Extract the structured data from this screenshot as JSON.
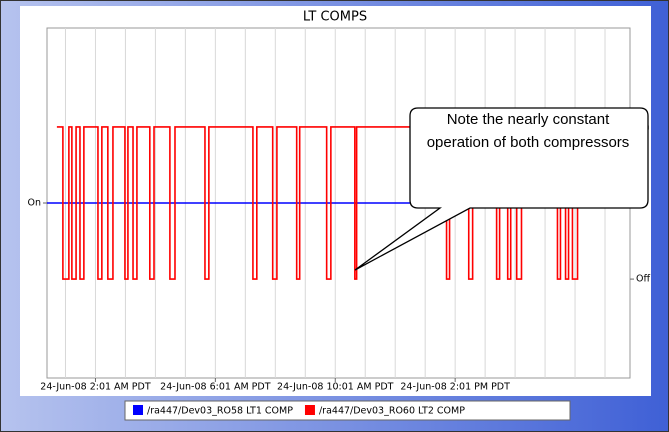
{
  "chart_data": {
    "type": "line",
    "step": "post",
    "title": "LT COMPS",
    "annotation": "Note the nearly constant operation of both compressors",
    "xlim": [
      0.4,
      19.85
    ],
    "xticks": [
      {
        "value": 2.0167,
        "label": "24-Jun-08 2:01 AM PDT"
      },
      {
        "value": 6.0167,
        "label": "24-Jun-08 6:01 AM PDT"
      },
      {
        "value": 10.0167,
        "label": "24-Jun-08 10:01 AM PDT"
      },
      {
        "value": 14.0167,
        "label": "24-Jun-08 2:01 PM PDT"
      }
    ],
    "xminorticks": [
      1.0167,
      2.0167,
      3.0167,
      4.0167,
      5.0167,
      6.0167,
      7.0167,
      8.0167,
      9.0167,
      10.0167,
      11.0167,
      12.0167,
      13.0167,
      14.0167,
      15.0167,
      16.0167,
      17.0167,
      18.0167,
      19.0167
    ],
    "ylim": [
      0,
      2
    ],
    "yticks": [
      {
        "value": 1,
        "label": "On"
      }
    ],
    "y2lim": [
      -0.65,
      1.65
    ],
    "y2ticks": [
      {
        "value": 1,
        "label": "On"
      },
      {
        "value": 0,
        "label": "Off"
      }
    ],
    "grid": true,
    "legend": "bottom",
    "series": [
      {
        "name": "/ra447/Dev03_RO58 LT1 COMP",
        "color": "#0000ff",
        "axis": "y",
        "x": [
          0.4,
          19.83
        ],
        "values": [
          1,
          1
        ]
      },
      {
        "name": "/ra447/Dev03_RO60 LT2 COMP",
        "color": "#ff0000",
        "axis": "y2",
        "x": [
          0.73,
          0.93,
          1.13,
          1.23,
          1.37,
          1.5,
          1.63,
          2.1,
          2.23,
          2.43,
          2.6,
          3.0,
          3.1,
          3.27,
          3.4,
          3.83,
          3.97,
          4.5,
          4.67,
          5.67,
          5.8,
          7.27,
          7.4,
          7.93,
          8.07,
          8.73,
          8.83,
          9.73,
          9.87,
          10.67,
          10.73,
          13.73,
          13.83,
          14.47,
          14.6,
          15.4,
          15.5,
          15.77,
          15.87,
          16.07,
          16.23,
          17.43,
          17.53,
          17.7,
          17.8,
          17.93,
          18.1,
          19.83
        ],
        "values": [
          1,
          0,
          1,
          0,
          1,
          0,
          1,
          0,
          1,
          0,
          1,
          0,
          1,
          0,
          1,
          0,
          1,
          0,
          1,
          0,
          1,
          0,
          1,
          0,
          1,
          0,
          1,
          0,
          1,
          0,
          1,
          0,
          1,
          0,
          1,
          0,
          1,
          0,
          1,
          0,
          1,
          0,
          1,
          0,
          1,
          0,
          1,
          1
        ]
      }
    ]
  }
}
